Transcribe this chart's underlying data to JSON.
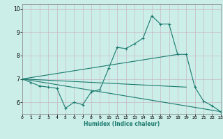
{
  "xlabel": "Humidex (Indice chaleur)",
  "bg_color": "#cceee8",
  "grid_color": "#c8b8c8",
  "line_color": "#1a7a6e",
  "xlim": [
    0,
    23
  ],
  "ylim": [
    5.5,
    10.2
  ],
  "yticks": [
    6,
    7,
    8,
    9,
    10
  ],
  "xticks": [
    0,
    1,
    2,
    3,
    4,
    5,
    6,
    7,
    8,
    9,
    10,
    11,
    12,
    13,
    14,
    15,
    16,
    17,
    18,
    19,
    20,
    21,
    22,
    23
  ],
  "series": [
    {
      "x": [
        0,
        1,
        2,
        3,
        4,
        5,
        6,
        7,
        8,
        9,
        10,
        11,
        12,
        13,
        14,
        15,
        16,
        17,
        18,
        19,
        20,
        21,
        22,
        23
      ],
      "y": [
        7.0,
        6.85,
        6.7,
        6.65,
        6.6,
        5.75,
        6.0,
        5.9,
        6.45,
        6.55,
        7.45,
        8.35,
        8.3,
        8.5,
        8.75,
        9.7,
        9.35,
        9.35,
        8.05,
        8.05,
        6.65,
        6.05,
        5.85,
        5.6
      ],
      "marker": true
    },
    {
      "x": [
        0,
        19
      ],
      "y": [
        7.0,
        6.65
      ],
      "marker": false
    },
    {
      "x": [
        0,
        18
      ],
      "y": [
        7.0,
        8.05
      ],
      "marker": false
    },
    {
      "x": [
        0,
        23
      ],
      "y": [
        7.0,
        5.6
      ],
      "marker": false
    }
  ]
}
